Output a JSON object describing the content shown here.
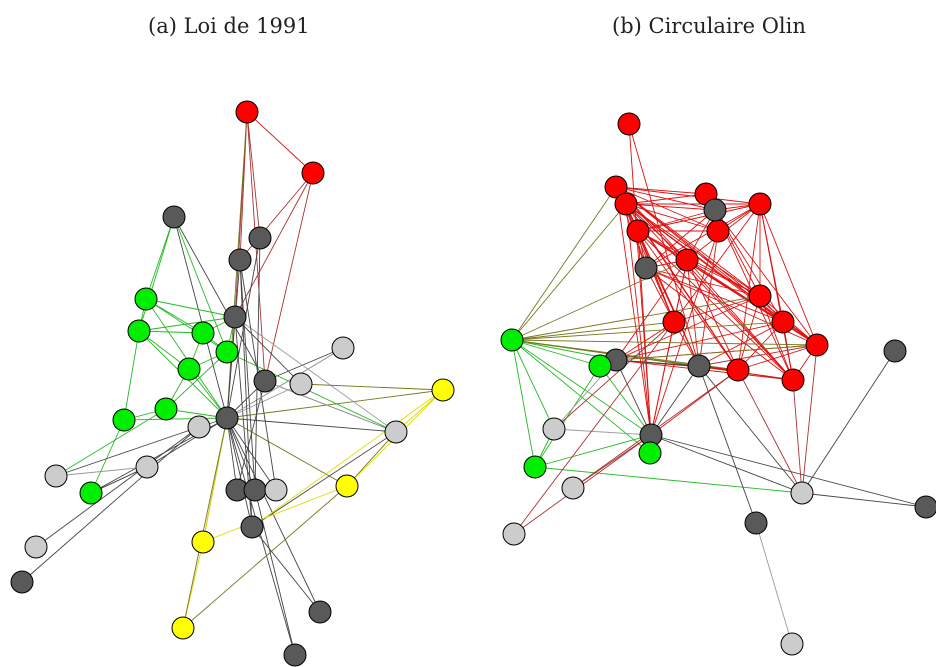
{
  "captions": {
    "a": "(a) Loi de 1991",
    "b": "(b) Circulaire Olin"
  },
  "colors": {
    "red": "#ff0000",
    "green": "#00ee00",
    "yellow": "#ffff00",
    "dark": "#595959",
    "light": "#cccccc",
    "stroke": "#000000"
  }
}
